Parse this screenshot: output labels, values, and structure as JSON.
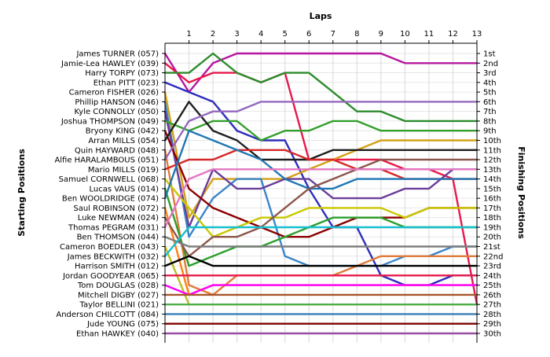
{
  "chart_data": {
    "type": "line",
    "title": "",
    "xlabel": "Laps",
    "ylabel_left": "Starting Positions",
    "ylabel_right": "Finishing Positions",
    "x_ticks": [
      "1",
      "2",
      "3",
      "4",
      "5",
      "6",
      "7",
      "8",
      "9",
      "10",
      "11",
      "12",
      "13"
    ],
    "x_range": [
      0,
      13
    ],
    "y_range": [
      1,
      30
    ],
    "y_inverted": true,
    "grid": true,
    "finishing_labels": [
      "1st",
      "2nd",
      "3rd",
      "4th",
      "5th",
      "6th",
      "7th",
      "8th",
      "9th",
      "10th",
      "11th",
      "12th",
      "13th",
      "14th",
      "15th",
      "16th",
      "17th",
      "18th",
      "19th",
      "20th",
      "21st",
      "22nd",
      "23rd",
      "24th",
      "25th",
      "26th",
      "27th",
      "28th",
      "29th",
      "30th"
    ],
    "series": [
      {
        "name": "James TURNER (057)",
        "color": "#b5179e",
        "values": [
          1,
          5,
          2,
          1,
          1,
          1,
          1,
          1,
          1,
          1,
          2,
          2,
          2,
          2
        ]
      },
      {
        "name": "Jamie-Lea HAWLEY (039)",
        "color": "#e6194b",
        "values": [
          2,
          4,
          3,
          3,
          4,
          3,
          12,
          12,
          12,
          12,
          13,
          13,
          14,
          27
        ]
      },
      {
        "name": "Harry TORPY (073)",
        "color": "#2b8c2b",
        "values": [
          3,
          3,
          1,
          3,
          4,
          3,
          3,
          5,
          7,
          7,
          8,
          8,
          8,
          8
        ]
      },
      {
        "name": "Ethan PITT (023)",
        "color": "#2d2dbd",
        "values": [
          4,
          5,
          6,
          9,
          10,
          10,
          15,
          19,
          19,
          24,
          25,
          25,
          24,
          24
        ]
      },
      {
        "name": "Cameron FISHER (026)",
        "color": "#d4a017",
        "values": [
          5,
          18,
          14,
          14,
          14,
          14,
          13,
          12,
          11,
          10,
          10,
          10,
          10,
          10
        ]
      },
      {
        "name": "Phillip HANSON (046)",
        "color": "#3a85c8",
        "values": [
          6,
          20,
          16,
          14,
          14,
          22,
          23,
          23,
          23,
          23,
          22,
          22,
          21,
          21
        ]
      },
      {
        "name": "Kyle CONNOLLY (050)",
        "color": "#6a3d9a",
        "values": [
          7,
          19,
          13,
          15,
          15,
          14,
          14,
          16,
          16,
          16,
          15,
          15,
          13,
          13
        ]
      },
      {
        "name": "Joshua THOMPSON (049)",
        "color": "#33a02c",
        "values": [
          8,
          9,
          8,
          8,
          10,
          9,
          9,
          8,
          8,
          9,
          9,
          9,
          9,
          9
        ]
      },
      {
        "name": "Bryony KING (042)",
        "color": "#8b0000",
        "values": [
          9,
          15,
          17,
          18,
          19,
          20,
          20,
          19,
          18,
          18,
          18,
          17,
          17,
          17
        ]
      },
      {
        "name": "Arran MILLS (054)",
        "color": "#1e1e1e",
        "values": [
          10,
          6,
          9,
          10,
          12,
          12,
          12,
          11,
          11,
          11,
          11,
          11,
          11,
          11
        ]
      },
      {
        "name": "Quin HAYWARD (048)",
        "color": "#e07b39",
        "values": [
          11,
          25,
          26,
          24,
          24,
          24,
          24,
          24,
          23,
          22,
          22,
          22,
          22,
          22
        ]
      },
      {
        "name": "Alfie HARALAMBOUS (051)",
        "color": "#9467bd",
        "values": [
          12,
          8,
          7,
          7,
          6,
          6,
          6,
          6,
          6,
          6,
          6,
          6,
          6,
          6
        ]
      },
      {
        "name": "Mario MILLS (019)",
        "color": "#d62728",
        "values": [
          13,
          12,
          12,
          11,
          11,
          11,
          12,
          12,
          13,
          13,
          14,
          14,
          14,
          14
        ]
      },
      {
        "name": "Samuel CORNWELL (068)",
        "color": "#c8c800",
        "values": [
          14,
          17,
          20,
          19,
          18,
          18,
          17,
          17,
          17,
          17,
          18,
          17,
          17,
          17
        ]
      },
      {
        "name": "Lucas VAUS (014)",
        "color": "#2ca02c",
        "values": [
          15,
          23,
          22,
          21,
          21,
          20,
          19,
          18,
          18,
          18,
          19,
          19,
          19,
          19
        ]
      },
      {
        "name": "Ben WOOLDRIDGE (074)",
        "color": "#1f77b4",
        "values": [
          16,
          9,
          10,
          11,
          12,
          14,
          15,
          15,
          14,
          14,
          14,
          14,
          14,
          14
        ]
      },
      {
        "name": "Saul ROBINSON (072)",
        "color": "#ff7f0e",
        "values": [
          17,
          26,
          25,
          25,
          25,
          25,
          25,
          25,
          25,
          25,
          25,
          25,
          25,
          25
        ]
      },
      {
        "name": "Luke NEWMAN (024)",
        "color": "#8c564b",
        "values": [
          18,
          22,
          20,
          20,
          19,
          17,
          15,
          14,
          13,
          12,
          12,
          12,
          12,
          12
        ]
      },
      {
        "name": "Thomas PEGRAM (031)",
        "color": "#e377c2",
        "values": [
          19,
          14,
          13,
          13,
          13,
          13,
          13,
          13,
          13,
          13,
          13,
          13,
          13,
          13
        ]
      },
      {
        "name": "Ben THOMSON (044)",
        "color": "#7f7f7f",
        "values": [
          20,
          21,
          21,
          21,
          21,
          21,
          21,
          21,
          21,
          21,
          21,
          21,
          21,
          21
        ]
      },
      {
        "name": "Cameron BOEDLER (043)",
        "color": "#bcbd22",
        "values": [
          21,
          27,
          27,
          27,
          27,
          27,
          27,
          27,
          27,
          27,
          27,
          27,
          27,
          27
        ]
      },
      {
        "name": "James BECKWITH (032)",
        "color": "#17becf",
        "values": [
          22,
          19,
          19,
          19,
          19,
          19,
          19,
          19,
          19,
          19,
          19,
          19,
          19,
          19
        ]
      },
      {
        "name": "Harrison SMITH (012)",
        "color": "#000000",
        "values": [
          23,
          22,
          23,
          23,
          23,
          23,
          23,
          23,
          23,
          23,
          23,
          23,
          23,
          23
        ]
      },
      {
        "name": "Jordan GOODYEAR (065)",
        "color": "#e6194b",
        "values": [
          24,
          24,
          24,
          24,
          24,
          24,
          24,
          24,
          24,
          24,
          24,
          24,
          24,
          24
        ]
      },
      {
        "name": "Tom DOUGLAS (028)",
        "color": "#ff00ff",
        "values": [
          25,
          26,
          25,
          25,
          25,
          25,
          25,
          25,
          25,
          25,
          25,
          25,
          25,
          25
        ]
      },
      {
        "name": "Mitchell DIGBY (027)",
        "color": "#a65628",
        "values": [
          26,
          26,
          26,
          26,
          26,
          26,
          26,
          26,
          26,
          26,
          26,
          26,
          26,
          26
        ]
      },
      {
        "name": "Taylor BELLINI (021)",
        "color": "#4daf4a",
        "values": [
          27,
          27,
          27,
          27,
          27,
          27,
          27,
          27,
          27,
          27,
          27,
          27,
          27,
          27
        ]
      },
      {
        "name": "Anderson CHILCOTT (084)",
        "color": "#377eb8",
        "values": [
          28,
          28,
          28,
          28,
          28,
          28,
          28,
          28,
          28,
          28,
          28,
          28,
          28,
          28
        ]
      },
      {
        "name": "Jude YOUNG (075)",
        "color": "#800000",
        "values": [
          29,
          29,
          29,
          29,
          29,
          29,
          29,
          29,
          29,
          29,
          29,
          29,
          29,
          29
        ]
      },
      {
        "name": "Ethan HAWKEY (040)",
        "color": "#984ea3",
        "values": [
          30,
          30,
          30,
          30,
          30,
          30,
          30,
          30,
          30,
          30,
          30,
          30,
          30,
          30
        ]
      }
    ]
  }
}
